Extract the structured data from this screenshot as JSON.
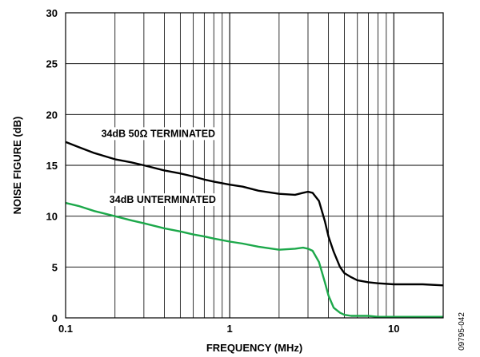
{
  "chart_data": {
    "type": "line",
    "xlabel": "FREQUENCY (MHz)",
    "ylabel": "NOISE FIGURE (dB)",
    "xscale": "log",
    "xlim": [
      0.1,
      20
    ],
    "ylim": [
      0,
      30
    ],
    "x_tick_labels": [
      {
        "value": 0.1,
        "label": "0.1"
      },
      {
        "value": 1,
        "label": "1"
      },
      {
        "value": 10,
        "label": "10"
      }
    ],
    "y_tick_labels": [
      {
        "value": 0,
        "label": "0"
      },
      {
        "value": 5,
        "label": "5"
      },
      {
        "value": 10,
        "label": "10"
      },
      {
        "value": 15,
        "label": "15"
      },
      {
        "value": 20,
        "label": "20"
      },
      {
        "value": 25,
        "label": "25"
      },
      {
        "value": 30,
        "label": "30"
      }
    ],
    "grid": true,
    "series": [
      {
        "name": "34dB 50Ω TERMINATED",
        "color": "#000000",
        "x": [
          0.1,
          0.12,
          0.15,
          0.2,
          0.25,
          0.3,
          0.4,
          0.5,
          0.6,
          0.7,
          0.8,
          1.0,
          1.2,
          1.5,
          2.0,
          2.5,
          2.8,
          3.0,
          3.2,
          3.5,
          3.8,
          4.0,
          4.3,
          4.7,
          5.0,
          5.5,
          6.0,
          7.0,
          8.0,
          10.0,
          12.0,
          15.0,
          20.0
        ],
        "y": [
          17.3,
          16.8,
          16.2,
          15.6,
          15.3,
          15.0,
          14.5,
          14.2,
          13.9,
          13.6,
          13.4,
          13.1,
          12.9,
          12.5,
          12.2,
          12.1,
          12.3,
          12.4,
          12.3,
          11.5,
          9.5,
          8.0,
          6.5,
          5.0,
          4.4,
          4.0,
          3.7,
          3.5,
          3.4,
          3.3,
          3.3,
          3.3,
          3.2
        ]
      },
      {
        "name": "34dB UNTERMINATED",
        "color": "#1ca84a",
        "x": [
          0.1,
          0.12,
          0.15,
          0.2,
          0.25,
          0.3,
          0.4,
          0.5,
          0.6,
          0.7,
          0.8,
          1.0,
          1.2,
          1.5,
          2.0,
          2.5,
          2.8,
          3.0,
          3.2,
          3.5,
          3.8,
          4.0,
          4.3,
          4.7,
          5.0,
          5.5,
          6.0,
          7.0,
          8.0,
          10.0,
          12.0,
          15.0,
          20.0
        ],
        "y": [
          11.3,
          11.0,
          10.5,
          10.0,
          9.6,
          9.3,
          8.8,
          8.5,
          8.2,
          8.0,
          7.8,
          7.5,
          7.3,
          7.0,
          6.7,
          6.8,
          6.9,
          6.8,
          6.6,
          5.5,
          3.5,
          2.2,
          1.0,
          0.5,
          0.3,
          0.2,
          0.2,
          0.2,
          0.1,
          0.1,
          0.1,
          0.1,
          0.1
        ]
      }
    ],
    "annotations": [
      {
        "text": "34dB 50Ω TERMINATED",
        "x": 0.165,
        "y": 17.8
      },
      {
        "text": "34dB UNTERMINATED",
        "x": 0.185,
        "y": 11.3
      }
    ]
  },
  "figure_id": "09795-042"
}
